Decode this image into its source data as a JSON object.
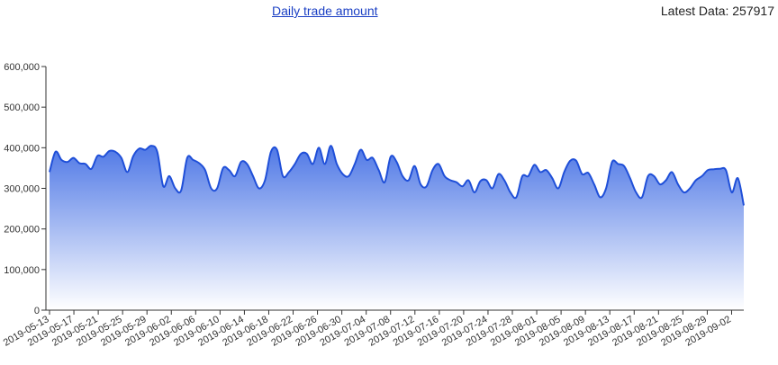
{
  "header": {
    "title": "Daily trade amount",
    "latest_label": "Latest Data: 257917"
  },
  "colors": {
    "line": "#1f4fd8",
    "fill_top": "#4f78e6",
    "fill_bottom": "#ffffff",
    "axis": "#333333"
  },
  "chart_data": {
    "type": "area",
    "title": "Daily trade amount",
    "xlabel": "",
    "ylabel": "",
    "ylim": [
      0,
      600000
    ],
    "yticks": [
      0,
      100000,
      200000,
      300000,
      400000,
      500000,
      600000
    ],
    "ytick_labels": [
      "0",
      "100,000",
      "200,000",
      "300,000",
      "400,000",
      "500,000",
      "600,000"
    ],
    "grid": false,
    "x_start": "2019-05-13",
    "x_end": "2019-09-04",
    "xtick_labels": [
      "2019-05-13",
      "2019-05-17",
      "2019-05-21",
      "2019-05-25",
      "2019-05-29",
      "2019-06-02",
      "2019-06-06",
      "2019-06-10",
      "2019-06-14",
      "2019-06-18",
      "2019-06-22",
      "2019-06-26",
      "2019-06-30",
      "2019-07-04",
      "2019-07-08",
      "2019-07-12",
      "2019-07-16",
      "2019-07-20",
      "2019-07-24",
      "2019-07-28",
      "2019-08-01",
      "2019-08-05",
      "2019-08-09",
      "2019-08-13",
      "2019-08-17",
      "2019-08-21",
      "2019-08-25",
      "2019-08-29",
      "2019-09-02"
    ],
    "series": [
      {
        "values": [
          340000,
          390000,
          370000,
          365000,
          375000,
          362000,
          360000,
          348000,
          380000,
          378000,
          392000,
          390000,
          375000,
          340000,
          380000,
          398000,
          395000,
          405000,
          390000,
          305000,
          330000,
          300000,
          295000,
          375000,
          370000,
          362000,
          345000,
          300000,
          300000,
          350000,
          345000,
          330000,
          365000,
          360000,
          330000,
          300000,
          320000,
          390000,
          395000,
          330000,
          340000,
          360000,
          385000,
          385000,
          360000,
          400000,
          360000,
          405000,
          360000,
          335000,
          330000,
          360000,
          395000,
          370000,
          375000,
          345000,
          315000,
          378000,
          365000,
          330000,
          320000,
          355000,
          310000,
          305000,
          345000,
          360000,
          330000,
          320000,
          315000,
          305000,
          320000,
          290000,
          318000,
          320000,
          300000,
          335000,
          320000,
          290000,
          278000,
          330000,
          330000,
          358000,
          340000,
          345000,
          325000,
          300000,
          340000,
          368000,
          368000,
          335000,
          338000,
          310000,
          278000,
          300000,
          365000,
          360000,
          355000,
          325000,
          290000,
          278000,
          330000,
          330000,
          310000,
          320000,
          340000,
          310000,
          290000,
          300000,
          320000,
          330000,
          345000,
          347000,
          348000,
          345000,
          290000,
          325000,
          257917
        ]
      }
    ]
  }
}
